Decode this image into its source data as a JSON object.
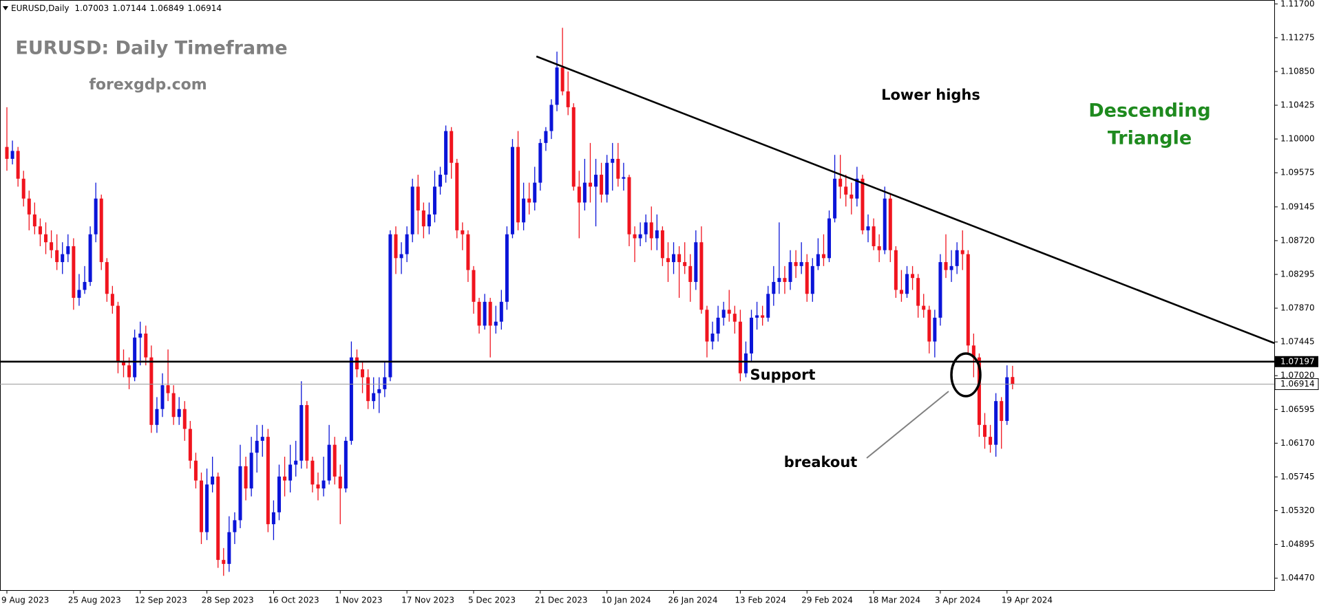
{
  "chart_data": {
    "type": "candlestick",
    "symbol": "EURUSD,Daily",
    "title": "EURUSD: Daily Timeframe",
    "subtitle": "forexgdp.com",
    "annotations": {
      "lower_highs": "Lower highs",
      "pattern": [
        "Descending",
        "Triangle"
      ],
      "support": "Support",
      "breakout": "breakout"
    },
    "up_color": "#0a14d8",
    "down_color": "#f0141e",
    "grid": false,
    "support_level": 1.07197,
    "trendline": {
      "x": [
        95.3,
        228.1
      ],
      "y": [
        1.1104,
        1.0743
      ]
    },
    "xlim": [
      -1.24,
      228.1
    ],
    "ylim": [
      1.0432,
      1.1175
    ],
    "yticks": [
      {
        "value": 1.117,
        "label": "1.11700"
      },
      1.11275,
      {
        "value": 1.1085,
        "label": "1.10850"
      },
      1.10425,
      {
        "value": 1.1,
        "label": "1.10000"
      },
      1.09575,
      1.09145,
      {
        "value": 1.0872,
        "label": "1.08720"
      },
      1.08295,
      {
        "value": 1.0787,
        "label": "1.07870"
      },
      1.07445,
      {
        "value": 1.0702,
        "label": "1.07020"
      },
      1.06595,
      {
        "value": 1.0617,
        "label": "1.06170"
      },
      1.05745,
      {
        "value": 1.0532,
        "label": "1.05320"
      },
      1.04895,
      {
        "value": 1.0447,
        "label": "1.04470"
      }
    ],
    "xticks": [
      {
        "value": 0,
        "label": "9 Aug 2023"
      },
      {
        "value": 12,
        "label": "25 Aug 2023"
      },
      {
        "value": 24,
        "label": "12 Sep 2023"
      },
      {
        "value": 36,
        "label": "28 Sep 2023"
      },
      {
        "value": 48,
        "label": "16 Oct 2023"
      },
      {
        "value": 60,
        "label": "1 Nov 2023"
      },
      {
        "value": 72,
        "label": "17 Nov 2023"
      },
      {
        "value": 84,
        "label": "5 Dec 2023"
      },
      {
        "value": 96,
        "label": "21 Dec 2023"
      },
      {
        "value": 108,
        "label": "10 Jan 2024"
      },
      {
        "value": 120,
        "label": "26 Jan 2024"
      },
      {
        "value": 132,
        "label": "13 Feb 2024"
      },
      {
        "value": 144,
        "label": "29 Feb 2024"
      },
      {
        "value": 156,
        "label": "18 Mar 2024"
      },
      {
        "value": 168,
        "label": "3 Apr 2024"
      },
      {
        "value": 180,
        "label": "19 Apr 2024"
      }
    ],
    "candles": [
      [
        1.099,
        1.104,
        1.096,
        1.0975
      ],
      [
        1.0975,
        1.0998,
        1.0968,
        1.0985
      ],
      [
        1.0985,
        1.099,
        1.094,
        1.095
      ],
      [
        1.095,
        1.096,
        1.0915,
        1.0925
      ],
      [
        1.0925,
        1.0935,
        1.0885,
        1.0905
      ],
      [
        1.0905,
        1.092,
        1.088,
        1.089
      ],
      [
        1.089,
        1.09,
        1.0865,
        1.088
      ],
      [
        1.088,
        1.0895,
        1.0855,
        1.087
      ],
      [
        1.087,
        1.0885,
        1.085,
        1.086
      ],
      [
        1.086,
        1.088,
        1.0835,
        1.0845
      ],
      [
        1.0845,
        1.087,
        1.083,
        1.0855
      ],
      [
        1.0855,
        1.088,
        1.0845,
        1.0865
      ],
      [
        1.0865,
        1.0875,
        1.0785,
        1.08
      ],
      [
        1.08,
        1.083,
        1.079,
        1.081
      ],
      [
        1.081,
        1.084,
        1.0805,
        1.082
      ],
      [
        1.082,
        1.089,
        1.0815,
        1.088
      ],
      [
        1.088,
        1.0945,
        1.087,
        1.0925
      ],
      [
        1.0925,
        1.093,
        1.0835,
        1.0845
      ],
      [
        1.0845,
        1.085,
        1.0795,
        1.0805
      ],
      [
        1.0805,
        1.0815,
        1.078,
        1.079
      ],
      [
        1.079,
        1.0795,
        1.0705,
        1.072
      ],
      [
        1.072,
        1.0735,
        1.07,
        1.0715
      ],
      [
        1.0715,
        1.0725,
        1.0685,
        1.07
      ],
      [
        1.07,
        1.076,
        1.0695,
        1.075
      ],
      [
        1.075,
        1.077,
        1.0715,
        1.0755
      ],
      [
        1.0755,
        1.0765,
        1.0715,
        1.0725
      ],
      [
        1.0725,
        1.074,
        1.063,
        1.064
      ],
      [
        1.064,
        1.0675,
        1.063,
        1.066
      ],
      [
        1.066,
        1.0705,
        1.065,
        1.069
      ],
      [
        1.069,
        1.0735,
        1.067,
        1.068
      ],
      [
        1.068,
        1.069,
        1.064,
        1.065
      ],
      [
        1.065,
        1.0675,
        1.064,
        1.066
      ],
      [
        1.066,
        1.067,
        1.062,
        1.0635
      ],
      [
        1.0635,
        1.0645,
        1.0585,
        1.0595
      ],
      [
        1.0595,
        1.0605,
        1.056,
        1.057
      ],
      [
        1.057,
        1.058,
        1.049,
        1.0505
      ],
      [
        1.0505,
        1.0585,
        1.0495,
        1.0565
      ],
      [
        1.0565,
        1.06,
        1.0555,
        1.0575
      ],
      [
        1.0575,
        1.058,
        1.046,
        1.047
      ],
      [
        1.047,
        1.0485,
        1.045,
        1.0465
      ],
      [
        1.0465,
        1.0525,
        1.0455,
        1.0505
      ],
      [
        1.0505,
        1.053,
        1.049,
        1.052
      ],
      [
        1.052,
        1.0615,
        1.051,
        1.0588
      ],
      [
        1.0588,
        1.06,
        1.0545,
        1.056
      ],
      [
        1.056,
        1.0625,
        1.055,
        1.0605
      ],
      [
        1.0605,
        1.064,
        1.058,
        1.062
      ],
      [
        1.062,
        1.064,
        1.06,
        1.0625
      ],
      [
        1.0625,
        1.0635,
        1.0505,
        1.0515
      ],
      [
        1.0515,
        1.0545,
        1.0495,
        1.053
      ],
      [
        1.053,
        1.059,
        1.052,
        1.0575
      ],
      [
        1.0575,
        1.06,
        1.055,
        1.057
      ],
      [
        1.057,
        1.0615,
        1.0555,
        1.059
      ],
      [
        1.059,
        1.062,
        1.0575,
        1.0595
      ],
      [
        1.0595,
        1.0695,
        1.0585,
        1.0665
      ],
      [
        1.0665,
        1.067,
        1.0585,
        1.0595
      ],
      [
        1.0595,
        1.06,
        1.0555,
        1.0565
      ],
      [
        1.0565,
        1.058,
        1.0545,
        1.056
      ],
      [
        1.056,
        1.06,
        1.055,
        1.057
      ],
      [
        1.057,
        1.064,
        1.0565,
        1.0615
      ],
      [
        1.0615,
        1.0625,
        1.0565,
        1.0575
      ],
      [
        1.0575,
        1.059,
        1.0515,
        1.056
      ],
      [
        1.056,
        1.0625,
        1.0555,
        1.062
      ],
      [
        1.062,
        1.0745,
        1.0615,
        1.0725
      ],
      [
        1.0725,
        1.0735,
        1.07,
        1.071
      ],
      [
        1.071,
        1.072,
        1.068,
        1.07
      ],
      [
        1.07,
        1.071,
        1.066,
        1.067
      ],
      [
        1.067,
        1.07,
        1.066,
        1.068
      ],
      [
        1.068,
        1.07,
        1.0655,
        1.0685
      ],
      [
        1.0685,
        1.072,
        1.0675,
        1.07
      ],
      [
        1.07,
        1.0885,
        1.0695,
        1.088
      ],
      [
        1.088,
        1.089,
        1.083,
        1.085
      ],
      [
        1.085,
        1.087,
        1.083,
        1.0855
      ],
      [
        1.0855,
        1.089,
        1.0845,
        1.088
      ],
      [
        1.088,
        1.095,
        1.087,
        1.094
      ],
      [
        1.094,
        1.0955,
        1.088,
        1.091
      ],
      [
        1.091,
        1.092,
        1.0875,
        1.089
      ],
      [
        1.089,
        1.092,
        1.088,
        1.0905
      ],
      [
        1.0905,
        1.096,
        1.0895,
        1.094
      ],
      [
        1.094,
        1.0965,
        1.093,
        1.0955
      ],
      [
        1.0955,
        1.1017,
        1.0945,
        1.101
      ],
      [
        1.101,
        1.1015,
        1.095,
        1.097
      ],
      [
        1.097,
        1.0975,
        1.0875,
        1.0885
      ],
      [
        1.0885,
        1.0895,
        1.086,
        1.088
      ],
      [
        1.088,
        1.0885,
        1.082,
        1.0835
      ],
      [
        1.0835,
        1.084,
        1.078,
        1.0795
      ],
      [
        1.0795,
        1.08,
        1.0755,
        1.0765
      ],
      [
        1.0765,
        1.0805,
        1.076,
        1.0795
      ],
      [
        1.0795,
        1.08,
        1.0725,
        1.0765
      ],
      [
        1.0765,
        1.079,
        1.0755,
        1.077
      ],
      [
        1.077,
        1.081,
        1.076,
        1.0795
      ],
      [
        1.0795,
        1.089,
        1.0785,
        1.088
      ],
      [
        1.088,
        1.1,
        1.0875,
        1.099
      ],
      [
        1.099,
        1.101,
        1.0885,
        1.0895
      ],
      [
        1.0895,
        1.0945,
        1.0885,
        1.0925
      ],
      [
        1.0925,
        1.0945,
        1.0905,
        1.092
      ],
      [
        1.092,
        1.0965,
        1.091,
        1.0945
      ],
      [
        1.0945,
        1.1,
        1.0935,
        1.0995
      ],
      [
        1.0995,
        1.1015,
        1.0985,
        1.101
      ],
      [
        1.101,
        1.105,
        1.1,
        1.1043
      ],
      [
        1.1043,
        1.111,
        1.1035,
        1.109
      ],
      [
        1.109,
        1.114,
        1.1055,
        1.106
      ],
      [
        1.106,
        1.1085,
        1.103,
        1.104
      ],
      [
        1.104,
        1.1045,
        1.0935,
        1.094
      ],
      [
        1.094,
        1.096,
        1.0875,
        1.092
      ],
      [
        1.092,
        1.0975,
        1.091,
        1.0945
      ],
      [
        1.0945,
        1.0995,
        1.092,
        1.094
      ],
      [
        1.094,
        1.0975,
        1.089,
        1.0955
      ],
      [
        1.0955,
        1.097,
        1.092,
        1.093
      ],
      [
        1.093,
        1.098,
        1.092,
        1.097
      ],
      [
        1.097,
        1.0995,
        1.0935,
        1.0975
      ],
      [
        1.0975,
        1.0995,
        1.094,
        1.095
      ],
      [
        1.095,
        1.097,
        1.0935,
        1.0952
      ],
      [
        1.0952,
        1.0955,
        1.0865,
        1.088
      ],
      [
        1.088,
        1.089,
        1.0845,
        1.0875
      ],
      [
        1.0875,
        1.0895,
        1.0865,
        1.088
      ],
      [
        1.088,
        1.0905,
        1.087,
        1.0895
      ],
      [
        1.0895,
        1.0915,
        1.086,
        1.0875
      ],
      [
        1.0875,
        1.0905,
        1.086,
        1.0885
      ],
      [
        1.0885,
        1.089,
        1.084,
        1.085
      ],
      [
        1.085,
        1.087,
        1.082,
        1.0845
      ],
      [
        1.0845,
        1.087,
        1.083,
        1.0855
      ],
      [
        1.0855,
        1.0865,
        1.08,
        1.0845
      ],
      [
        1.0845,
        1.087,
        1.083,
        1.084
      ],
      [
        1.084,
        1.0855,
        1.0795,
        1.082
      ],
      [
        1.082,
        1.0885,
        1.081,
        1.087
      ],
      [
        1.087,
        1.089,
        1.078,
        1.0785
      ],
      [
        1.0785,
        1.079,
        1.0725,
        1.0745
      ],
      [
        1.0745,
        1.077,
        1.0735,
        1.0755
      ],
      [
        1.0755,
        1.079,
        1.0745,
        1.0775
      ],
      [
        1.0775,
        1.0795,
        1.0765,
        1.0785
      ],
      [
        1.0785,
        1.081,
        1.077,
        1.078
      ],
      [
        1.078,
        1.079,
        1.0755,
        1.077
      ],
      [
        1.077,
        1.0785,
        1.0695,
        1.0705
      ],
      [
        1.0705,
        1.0745,
        1.07,
        1.073
      ],
      [
        1.073,
        1.0785,
        1.072,
        1.0775
      ],
      [
        1.0775,
        1.0795,
        1.076,
        1.0778
      ],
      [
        1.0778,
        1.079,
        1.0765,
        1.0775
      ],
      [
        1.0775,
        1.0815,
        1.077,
        1.0805
      ],
      [
        1.0805,
        1.084,
        1.079,
        1.082
      ],
      [
        1.082,
        1.0895,
        1.0805,
        1.0825
      ],
      [
        1.0825,
        1.084,
        1.0805,
        1.082
      ],
      [
        1.082,
        1.086,
        1.081,
        1.0845
      ],
      [
        1.0845,
        1.086,
        1.0825,
        1.084
      ],
      [
        1.084,
        1.087,
        1.083,
        1.0845
      ],
      [
        1.0845,
        1.0855,
        1.0795,
        1.0805
      ],
      [
        1.0805,
        1.085,
        1.0795,
        1.084
      ],
      [
        1.084,
        1.0875,
        1.0835,
        1.0855
      ],
      [
        1.0855,
        1.088,
        1.084,
        1.085
      ],
      [
        1.085,
        1.091,
        1.0845,
        1.09
      ],
      [
        1.09,
        1.098,
        1.0895,
        1.095
      ],
      [
        1.095,
        1.098,
        1.0925,
        1.094
      ],
      [
        1.094,
        1.0955,
        1.0915,
        1.093
      ],
      [
        1.093,
        1.0945,
        1.0905,
        1.0925
      ],
      [
        1.0925,
        1.0965,
        1.0915,
        1.095
      ],
      [
        1.095,
        1.0955,
        1.088,
        1.0885
      ],
      [
        1.0885,
        1.0905,
        1.087,
        1.089
      ],
      [
        1.089,
        1.09,
        1.086,
        1.0865
      ],
      [
        1.0865,
        1.088,
        1.0845,
        1.086
      ],
      [
        1.086,
        1.094,
        1.0855,
        1.0925
      ],
      [
        1.0925,
        1.093,
        1.0845,
        1.086
      ],
      [
        1.086,
        1.0865,
        1.08,
        1.081
      ],
      [
        1.081,
        1.0835,
        1.0795,
        1.0805
      ],
      [
        1.0805,
        1.084,
        1.08,
        1.083
      ],
      [
        1.083,
        1.084,
        1.081,
        1.0825
      ],
      [
        1.0825,
        1.083,
        1.0775,
        1.079
      ],
      [
        1.079,
        1.0805,
        1.0775,
        1.0785
      ],
      [
        1.0785,
        1.079,
        1.073,
        1.0745
      ],
      [
        1.0745,
        1.0785,
        1.0725,
        1.0775
      ],
      [
        1.0775,
        1.0855,
        1.0765,
        1.0845
      ],
      [
        1.0845,
        1.088,
        1.0825,
        1.0835
      ],
      [
        1.0835,
        1.086,
        1.082,
        1.084
      ],
      [
        1.084,
        1.087,
        1.083,
        1.086
      ],
      [
        1.086,
        1.0885,
        1.0835,
        1.0855
      ],
      [
        1.0855,
        1.086,
        1.073,
        1.074
      ],
      [
        1.074,
        1.0755,
        1.07,
        1.0725
      ],
      [
        1.0725,
        1.073,
        1.0625,
        1.064
      ],
      [
        1.064,
        1.0655,
        1.061,
        1.0625
      ],
      [
        1.0625,
        1.064,
        1.0605,
        1.0615
      ],
      [
        1.0615,
        1.068,
        1.06,
        1.067
      ],
      [
        1.067,
        1.0675,
        1.061,
        1.0645
      ],
      [
        1.0645,
        1.0715,
        1.064,
        1.07
      ],
      [
        1.07003,
        1.07144,
        1.06849,
        1.06914
      ]
    ]
  }
}
